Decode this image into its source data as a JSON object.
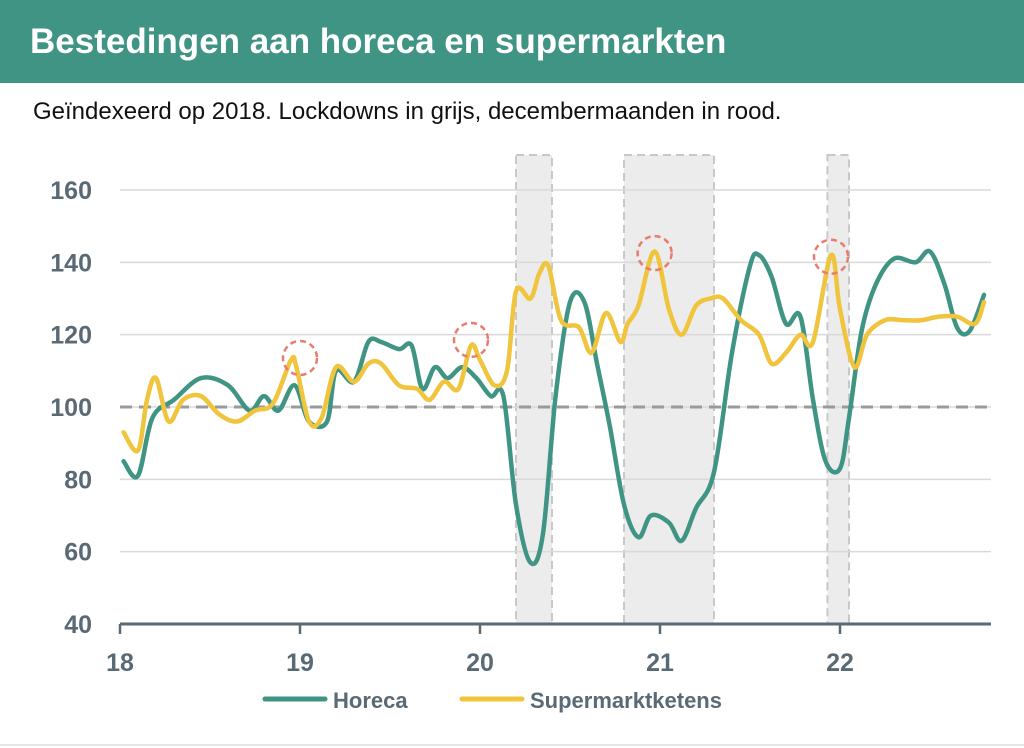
{
  "header": {
    "title": "Bestedingen aan horeca en supermarkten",
    "subtitle": "Geïndexeerd op 2018. Lockdowns in grijs, decembermaanden in rood."
  },
  "colors": {
    "header_bg": "#3f9484",
    "horeca": "#3f9484",
    "supermarkt": "#f0c43c",
    "lockdown": "#ececec",
    "december_marker": "#e87c70",
    "grid": "#d9d9d9",
    "axis_text": "#5a6a75"
  },
  "chart_data": {
    "type": "line",
    "x_axis": {
      "min": 18,
      "max": 22.8,
      "ticks": [
        18,
        19,
        20,
        21,
        22
      ],
      "tick_labels": [
        "18",
        "19",
        "20",
        "21",
        "22"
      ]
    },
    "y_axis": {
      "min": 40,
      "max": 165,
      "ticks": [
        40,
        60,
        80,
        100,
        120,
        140,
        160
      ],
      "tick_labels": [
        "40",
        "60",
        "80",
        "100",
        "120",
        "140",
        "160"
      ]
    },
    "grid": true,
    "reference_line": 100,
    "lockdowns": [
      [
        20.2,
        20.4
      ],
      [
        20.8,
        21.3
      ],
      [
        21.93,
        22.05
      ]
    ],
    "december_markers": [
      {
        "x": 19.0,
        "y": 113
      },
      {
        "x": 19.95,
        "y": 118
      },
      {
        "x": 20.97,
        "y": 142
      },
      {
        "x": 21.95,
        "y": 141
      }
    ],
    "legend_position": "bottom",
    "series": [
      {
        "name": "Horeca",
        "x": [
          18.02,
          18.1,
          18.18,
          18.3,
          18.45,
          18.6,
          18.72,
          18.8,
          18.88,
          18.97,
          19.05,
          19.15,
          19.2,
          19.3,
          19.38,
          19.45,
          19.55,
          19.62,
          19.68,
          19.75,
          19.82,
          19.9,
          19.98,
          20.06,
          20.13,
          20.2,
          20.28,
          20.35,
          20.42,
          20.5,
          20.58,
          20.65,
          20.72,
          20.8,
          20.88,
          20.95,
          21.05,
          21.12,
          21.2,
          21.3,
          21.4,
          21.5,
          21.55,
          21.62,
          21.7,
          21.78,
          21.85,
          21.92,
          22.0,
          22.05,
          22.12,
          22.2,
          22.3,
          22.42,
          22.5,
          22.58,
          22.65,
          22.72,
          22.8
        ],
        "values": [
          85,
          81,
          97,
          102,
          108,
          106,
          99,
          103,
          99,
          106,
          96,
          96,
          110,
          107,
          118,
          118,
          116,
          117,
          105,
          111,
          108,
          111,
          108,
          103,
          103,
          73,
          57,
          65,
          103,
          129,
          129,
          112,
          95,
          73,
          64,
          70,
          68,
          63,
          72,
          82,
          115,
          139,
          142,
          136,
          123,
          125,
          102,
          85,
          83,
          97,
          121,
          134,
          141,
          140,
          143,
          134,
          122,
          121,
          131
        ]
      },
      {
        "name": "Supermarktketens",
        "x": [
          18.02,
          18.1,
          18.15,
          18.2,
          18.27,
          18.35,
          18.45,
          18.55,
          18.65,
          18.75,
          18.85,
          18.95,
          18.98,
          19.05,
          19.12,
          19.2,
          19.3,
          19.38,
          19.45,
          19.55,
          19.65,
          19.72,
          19.8,
          19.88,
          19.95,
          20.0,
          20.08,
          20.15,
          20.2,
          20.28,
          20.33,
          20.38,
          20.45,
          20.55,
          20.62,
          20.7,
          20.78,
          20.82,
          20.88,
          20.97,
          21.05,
          21.12,
          21.2,
          21.28,
          21.35,
          21.45,
          21.55,
          21.62,
          21.7,
          21.78,
          21.85,
          21.95,
          22.0,
          22.08,
          22.15,
          22.25,
          22.35,
          22.45,
          22.55,
          22.65,
          22.75,
          22.8
        ],
        "values": [
          93,
          88,
          102,
          108,
          96,
          102,
          103,
          98,
          96,
          99,
          101,
          113,
          111,
          96,
          97,
          111,
          107,
          112,
          112,
          106,
          105,
          102,
          107,
          105,
          117,
          113,
          106,
          110,
          132,
          130,
          137,
          139,
          124,
          122,
          115,
          126,
          118,
          123,
          128,
          143,
          127,
          120,
          128,
          130,
          130,
          124,
          120,
          112,
          115,
          120,
          118,
          142,
          127,
          111,
          120,
          124,
          124,
          124,
          125,
          125,
          123,
          129
        ]
      }
    ]
  }
}
